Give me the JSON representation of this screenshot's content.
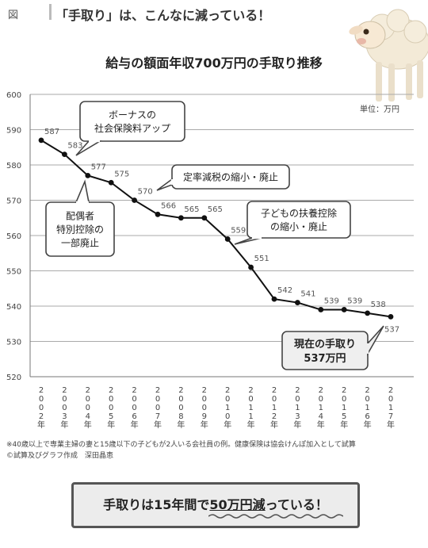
{
  "header": {
    "fig_label": "図",
    "title": "「手取り」は、こんなに減っている！"
  },
  "chart_data": {
    "type": "line",
    "title": "給与の額面年収700万円の手取り推移",
    "unit_label": "単位：万円",
    "xlabel": "",
    "ylabel": "",
    "x": [
      "2002年",
      "2003年",
      "2004年",
      "2005年",
      "2006年",
      "2007年",
      "2008年",
      "2009年",
      "2010年",
      "2011年",
      "2012年",
      "2013年",
      "2014年",
      "2015年",
      "2016年",
      "2017年"
    ],
    "x_tick_chars": [
      [
        "2",
        "0",
        "0",
        "2",
        "年"
      ],
      [
        "2",
        "0",
        "0",
        "3",
        "年"
      ],
      [
        "2",
        "0",
        "0",
        "4",
        "年"
      ],
      [
        "2",
        "0",
        "0",
        "5",
        "年"
      ],
      [
        "2",
        "0",
        "0",
        "6",
        "年"
      ],
      [
        "2",
        "0",
        "0",
        "7",
        "年"
      ],
      [
        "2",
        "0",
        "0",
        "8",
        "年"
      ],
      [
        "2",
        "0",
        "0",
        "9",
        "年"
      ],
      [
        "2",
        "0",
        "1",
        "0",
        "年"
      ],
      [
        "2",
        "0",
        "1",
        "1",
        "年"
      ],
      [
        "2",
        "0",
        "1",
        "2",
        "年"
      ],
      [
        "2",
        "0",
        "1",
        "3",
        "年"
      ],
      [
        "2",
        "0",
        "1",
        "4",
        "年"
      ],
      [
        "2",
        "0",
        "1",
        "5",
        "年"
      ],
      [
        "2",
        "0",
        "1",
        "6",
        "年"
      ],
      [
        "2",
        "0",
        "1",
        "7",
        "年"
      ]
    ],
    "values": [
      587,
      583,
      577,
      575,
      570,
      566,
      565,
      565,
      559,
      551,
      542,
      541,
      539,
      539,
      538,
      537
    ],
    "ylim": [
      520,
      600
    ],
    "yticks": [
      520,
      530,
      540,
      550,
      560,
      570,
      580,
      590,
      600
    ],
    "grid": true,
    "annotations": [
      {
        "lines": [
          "ボーナスの",
          "社会保険料アップ"
        ]
      },
      {
        "lines": [
          "配偶者",
          "特別控除の",
          "一部廃止"
        ]
      },
      {
        "lines": [
          "定率減税の縮小・廃止"
        ]
      },
      {
        "lines": [
          "子どもの扶養控除",
          "の縮小・廃止"
        ]
      },
      {
        "lines": [
          "現在の手取り",
          "537万円"
        ]
      }
    ]
  },
  "footnotes": [
    "※40歳以上で専業主婦の妻と15歳以下の子どもが2人いる会社員の例。健康保険は協会けんぽ加入として試算",
    "©試算及びグラフ作成　深田晶恵"
  ],
  "summary": {
    "prefix": "手取りは15年間で",
    "highlight": "50万円減",
    "suffix": "っている！"
  }
}
